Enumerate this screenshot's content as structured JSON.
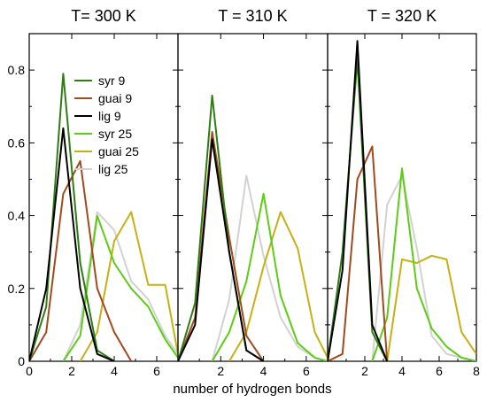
{
  "chart_data": {
    "type": "line",
    "xlabel": "number of hydrogen bonds",
    "ylabel": "",
    "ylim": [
      0,
      0.9
    ],
    "yticks": [
      0,
      0.2,
      0.4,
      0.6,
      0.8
    ],
    "grid": false,
    "legend_placement": "top-right of first panel",
    "legend": [
      {
        "name": "syr 9",
        "color": "#2e7d14"
      },
      {
        "name": "guai 9",
        "color": "#a04a1e"
      },
      {
        "name": "lig 9",
        "color": "#000000"
      },
      {
        "name": "syr 25",
        "color": "#5ccc14"
      },
      {
        "name": "guai 25",
        "color": "#c8b014"
      },
      {
        "name": "lig 25",
        "color": "#d2d2d2"
      }
    ],
    "panels": [
      {
        "title": "T= 300 K",
        "xlim": [
          0,
          7
        ],
        "xticks": [
          0,
          2,
          4,
          6
        ],
        "series": [
          {
            "name": "syr 9",
            "x": [
              0,
              0.8,
              1.6,
              2.4,
              3.2,
              4.0
            ],
            "y": [
              0,
              0.15,
              0.79,
              0.27,
              0.03,
              0
            ]
          },
          {
            "name": "guai 9",
            "x": [
              0,
              0.8,
              1.6,
              2.4,
              3.2,
              4.0,
              4.8
            ],
            "y": [
              0,
              0.08,
              0.46,
              0.55,
              0.2,
              0.08,
              0
            ]
          },
          {
            "name": "lig 9",
            "x": [
              0,
              0.8,
              1.6,
              2.4,
              3.2,
              4.0
            ],
            "y": [
              0,
              0.2,
              0.64,
              0.2,
              0.02,
              0
            ]
          },
          {
            "name": "syr 25",
            "x": [
              1.6,
              2.4,
              3.2,
              4.0,
              4.8,
              5.6,
              6.4,
              7.0
            ],
            "y": [
              0,
              0.07,
              0.4,
              0.27,
              0.2,
              0.15,
              0.06,
              0.01
            ]
          },
          {
            "name": "guai 25",
            "x": [
              2.4,
              3.2,
              4.0,
              4.8,
              5.6,
              6.4,
              7.0
            ],
            "y": [
              0,
              0.08,
              0.33,
              0.41,
              0.21,
              0.21,
              0.02
            ]
          },
          {
            "name": "lig 25",
            "x": [
              1.6,
              2.4,
              3.2,
              4.0,
              4.8,
              5.6,
              6.4,
              7.0
            ],
            "y": [
              0,
              0.1,
              0.41,
              0.36,
              0.22,
              0.17,
              0.07,
              0.02
            ]
          }
        ]
      },
      {
        "title": "T = 310 K",
        "xlim": [
          0,
          7
        ],
        "xticks": [
          0,
          2,
          4,
          6
        ],
        "series": [
          {
            "name": "syr 9",
            "x": [
              0,
              0.8,
              1.6,
              2.4,
              3.2,
              4.0
            ],
            "y": [
              0,
              0.16,
              0.73,
              0.3,
              0.03,
              0
            ]
          },
          {
            "name": "guai 9",
            "x": [
              0,
              0.8,
              1.6,
              2.4,
              3.2,
              4.0
            ],
            "y": [
              0,
              0.12,
              0.63,
              0.34,
              0.07,
              0
            ]
          },
          {
            "name": "lig 9",
            "x": [
              0,
              0.8,
              1.6,
              2.4,
              3.2,
              4.0
            ],
            "y": [
              0,
              0.1,
              0.61,
              0.3,
              0.03,
              0
            ]
          },
          {
            "name": "syr 25",
            "x": [
              1.6,
              2.4,
              3.2,
              4.0,
              4.8,
              5.6,
              6.4,
              7.0
            ],
            "y": [
              0,
              0.08,
              0.22,
              0.46,
              0.18,
              0.05,
              0.01,
              0
            ]
          },
          {
            "name": "guai 25",
            "x": [
              2.4,
              3.2,
              4.0,
              4.8,
              5.6,
              6.4,
              7.0
            ],
            "y": [
              0,
              0.08,
              0.26,
              0.41,
              0.31,
              0.08,
              0.01
            ]
          },
          {
            "name": "lig 25",
            "x": [
              1.6,
              2.4,
              3.2,
              4.0,
              4.8,
              5.6,
              6.4,
              7.0
            ],
            "y": [
              0,
              0.17,
              0.51,
              0.29,
              0.12,
              0.04,
              0.01,
              0
            ]
          }
        ]
      },
      {
        "title": "T = 320 K",
        "xlim": [
          0,
          8
        ],
        "xticks": [
          0,
          2,
          4,
          6,
          8
        ],
        "series": [
          {
            "name": "syr 9",
            "x": [
              0,
              0.8,
              1.6,
              2.4,
              3.2
            ],
            "y": [
              0,
              0.3,
              0.83,
              0.08,
              0
            ]
          },
          {
            "name": "guai 9",
            "x": [
              0,
              0.8,
              1.6,
              2.4,
              3.2
            ],
            "y": [
              0,
              0.02,
              0.5,
              0.59,
              0
            ]
          },
          {
            "name": "lig 9",
            "x": [
              0,
              0.8,
              1.6,
              2.4,
              3.2
            ],
            "y": [
              0,
              0.25,
              0.88,
              0.1,
              0
            ]
          },
          {
            "name": "syr 25",
            "x": [
              2.4,
              3.2,
              4.0,
              4.8,
              5.6,
              6.4,
              7.2,
              8.0
            ],
            "y": [
              0,
              0.12,
              0.53,
              0.2,
              0.09,
              0.04,
              0.01,
              0
            ]
          },
          {
            "name": "guai 25",
            "x": [
              3.2,
              4.0,
              4.8,
              5.6,
              6.4,
              7.2,
              8.0
            ],
            "y": [
              0,
              0.28,
              0.27,
              0.29,
              0.28,
              0.08,
              0.02
            ]
          },
          {
            "name": "lig 25",
            "x": [
              2.4,
              3.2,
              4.0,
              4.8,
              5.6,
              6.4,
              7.2,
              8.0
            ],
            "y": [
              0,
              0.43,
              0.51,
              0.31,
              0.07,
              0.02,
              0.01,
              0
            ]
          }
        ]
      }
    ]
  }
}
